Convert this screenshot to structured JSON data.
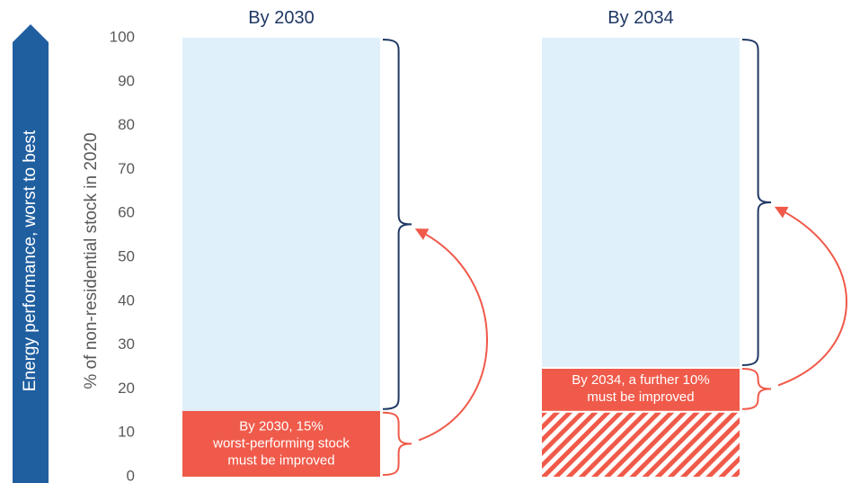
{
  "chart_data": {
    "type": "bar",
    "ylabel": "% of non-residential stock in 2020",
    "ylim": [
      0,
      100
    ],
    "yticks": [
      0,
      10,
      20,
      30,
      40,
      50,
      60,
      70,
      80,
      90,
      100
    ],
    "side_arrow_label": "Energy performance, worst to best",
    "categories": [
      "By 2030",
      "By 2034"
    ],
    "bars": [
      {
        "title": "By 2030",
        "segments": [
          {
            "from": 0,
            "to": 15,
            "kind": "improve",
            "label_lines": [
              "By 2030, 15%",
              "worst-performing stock",
              "must be improved"
            ]
          },
          {
            "from": 15,
            "to": 100,
            "kind": "remaining",
            "label_lines": []
          }
        ]
      },
      {
        "title": "By 2034",
        "segments": [
          {
            "from": 0,
            "to": 15,
            "kind": "already_improved",
            "label_lines": []
          },
          {
            "from": 15,
            "to": 25,
            "kind": "improve",
            "label_lines": [
              "By 2034, a further 10%",
              "must be improved"
            ]
          },
          {
            "from": 25,
            "to": 100,
            "kind": "remaining",
            "label_lines": []
          }
        ]
      }
    ],
    "colors": {
      "improve": "#f05a4a",
      "remaining": "#dff0fb",
      "brace_improve": "#f05a4a",
      "brace_remaining": "#1f3864",
      "side_arrow": "#1f5fa0",
      "title": "#1f3864",
      "tick": "#595959"
    }
  }
}
